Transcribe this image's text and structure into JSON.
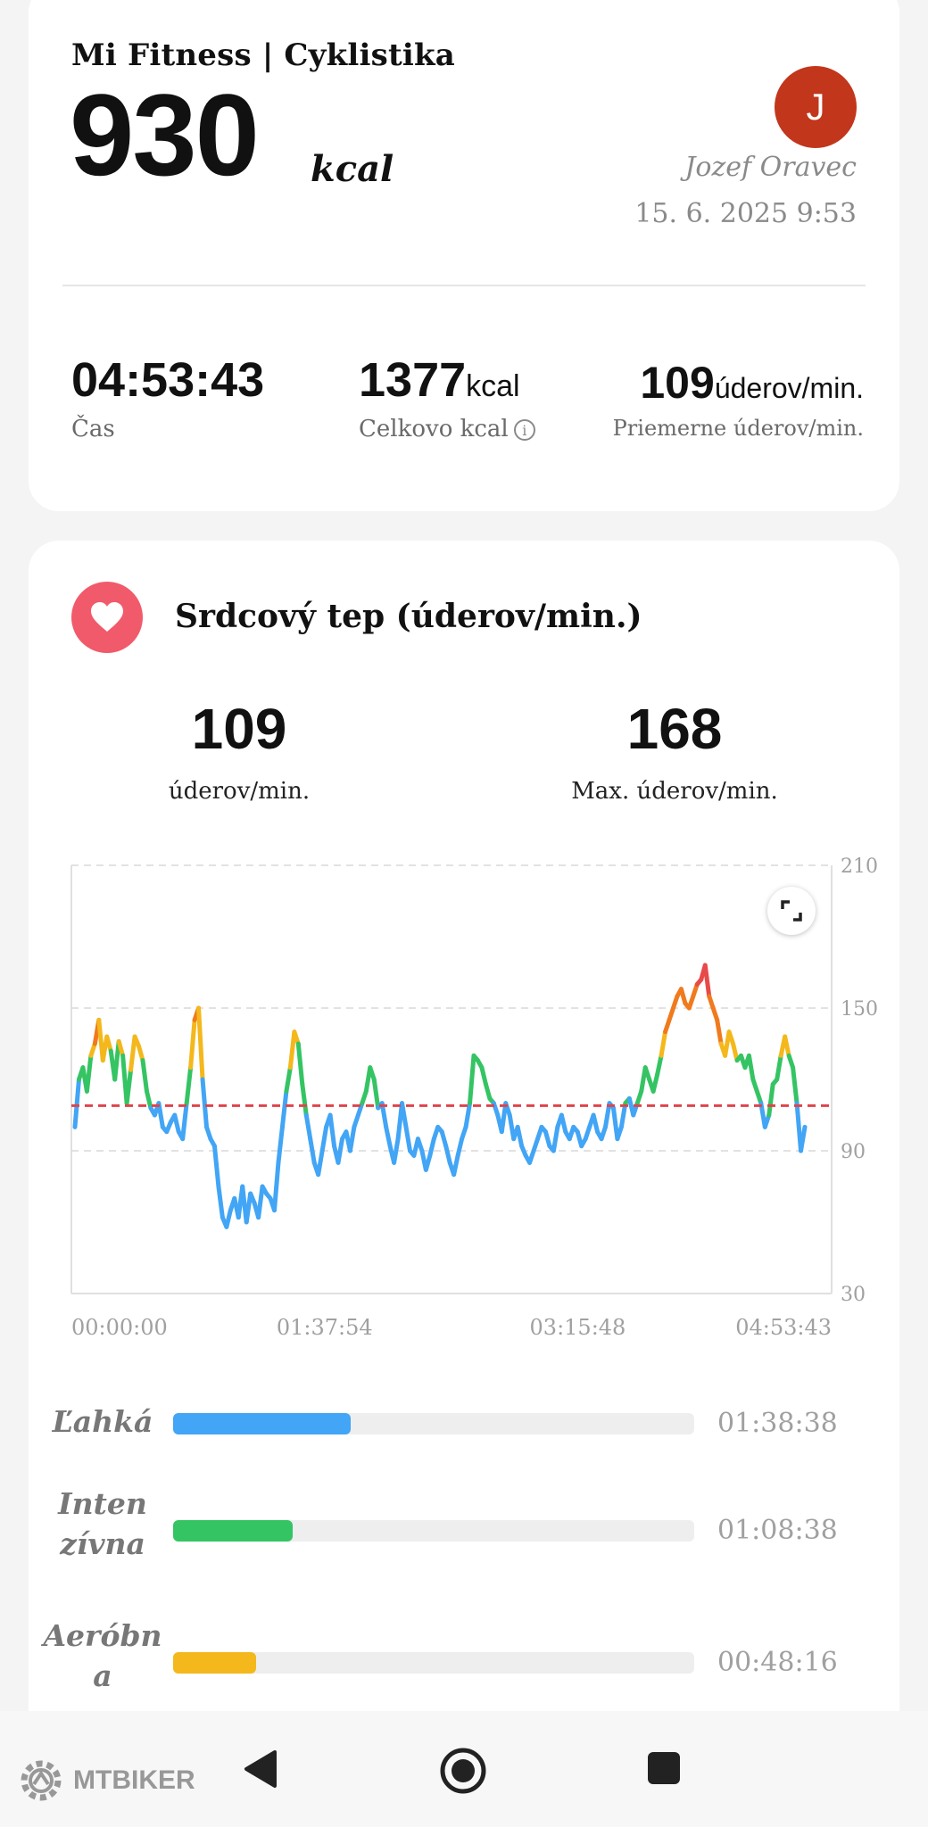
{
  "header": {
    "app_title": "Mi Fitness | Cyklistika",
    "calories_value": "930",
    "calories_unit": "kcal"
  },
  "user": {
    "initial": "J",
    "name": "Jozef Oravec",
    "datetime": "15. 6. 2025 9:53",
    "avatar_color": "#c2361c"
  },
  "summary": {
    "time": {
      "value": "04:53:43",
      "label": "Čas"
    },
    "total_kcal": {
      "value": "1377",
      "unit": "kcal",
      "label": "Celkovo kcal"
    },
    "avg_hr": {
      "value": "109",
      "unit": "úderov/min.",
      "label": "Priemerne úderov/min."
    }
  },
  "heart_rate": {
    "title": "Srdcový tep (úderov/min.)",
    "avg_value": "109",
    "avg_label": "úderov/min.",
    "max_value": "168",
    "max_label": "Max. úderov/min.",
    "icon": "heart-icon"
  },
  "chart_data": {
    "type": "line",
    "ylim": [
      30,
      210
    ],
    "y_ticks": [
      "210",
      "150",
      "90",
      "30"
    ],
    "x_ticks": [
      "00:00:00",
      "01:37:54",
      "03:15:48",
      "04:53:43"
    ],
    "average_line": 109,
    "zone_colors": {
      "light": "#42a5f5",
      "intensive": "#35c463",
      "aerobic": "#f4b81c",
      "anaerobic": "#f07a1e",
      "max": "#e84a4a"
    },
    "y": [
      100,
      120,
      125,
      115,
      130,
      135,
      145,
      128,
      138,
      132,
      120,
      136,
      130,
      110,
      124,
      138,
      134,
      128,
      115,
      108,
      105,
      110,
      100,
      98,
      102,
      105,
      98,
      95,
      110,
      125,
      145,
      150,
      120,
      100,
      95,
      92,
      75,
      62,
      58,
      65,
      70,
      62,
      75,
      60,
      72,
      68,
      62,
      75,
      72,
      70,
      65,
      85,
      100,
      115,
      125,
      140,
      135,
      118,
      105,
      95,
      85,
      80,
      90,
      100,
      105,
      92,
      85,
      95,
      98,
      90,
      100,
      105,
      110,
      115,
      125,
      120,
      108,
      110,
      100,
      92,
      85,
      95,
      110,
      100,
      90,
      88,
      95,
      90,
      82,
      88,
      95,
      100,
      98,
      92,
      85,
      80,
      88,
      95,
      100,
      110,
      130,
      128,
      125,
      118,
      112,
      110,
      105,
      98,
      110,
      105,
      95,
      100,
      92,
      88,
      85,
      90,
      95,
      100,
      98,
      92,
      90,
      100,
      105,
      98,
      95,
      100,
      98,
      92,
      95,
      100,
      105,
      98,
      95,
      100,
      110,
      108,
      95,
      100,
      110,
      112,
      105,
      110,
      115,
      125,
      120,
      115,
      122,
      130,
      140,
      145,
      150,
      155,
      158,
      152,
      150,
      155,
      160,
      162,
      168,
      155,
      150,
      145,
      135,
      130,
      140,
      135,
      128,
      130,
      125,
      130,
      120,
      115,
      110,
      100,
      105,
      118,
      120,
      130,
      138,
      130,
      125,
      110,
      90,
      100
    ],
    "thresholds": {
      "intensive": 111,
      "aerobic": 130,
      "anaerobic": 140,
      "max": 160
    }
  },
  "zones": [
    {
      "name": "Ľahká",
      "time": "01:38:38",
      "fraction": 0.34,
      "color": "#42a5f5"
    },
    {
      "name": "Inten\nzívna",
      "time": "01:08:38",
      "fraction": 0.23,
      "color": "#35c463"
    },
    {
      "name": "Aeróbna",
      "time": "00:48:16",
      "fraction": 0.16,
      "color": "#f4b81c"
    }
  ],
  "nav": {
    "back": "back-icon",
    "home": "home-icon",
    "recents": "recents-icon"
  },
  "watermark": {
    "text": "MTBIKER"
  }
}
